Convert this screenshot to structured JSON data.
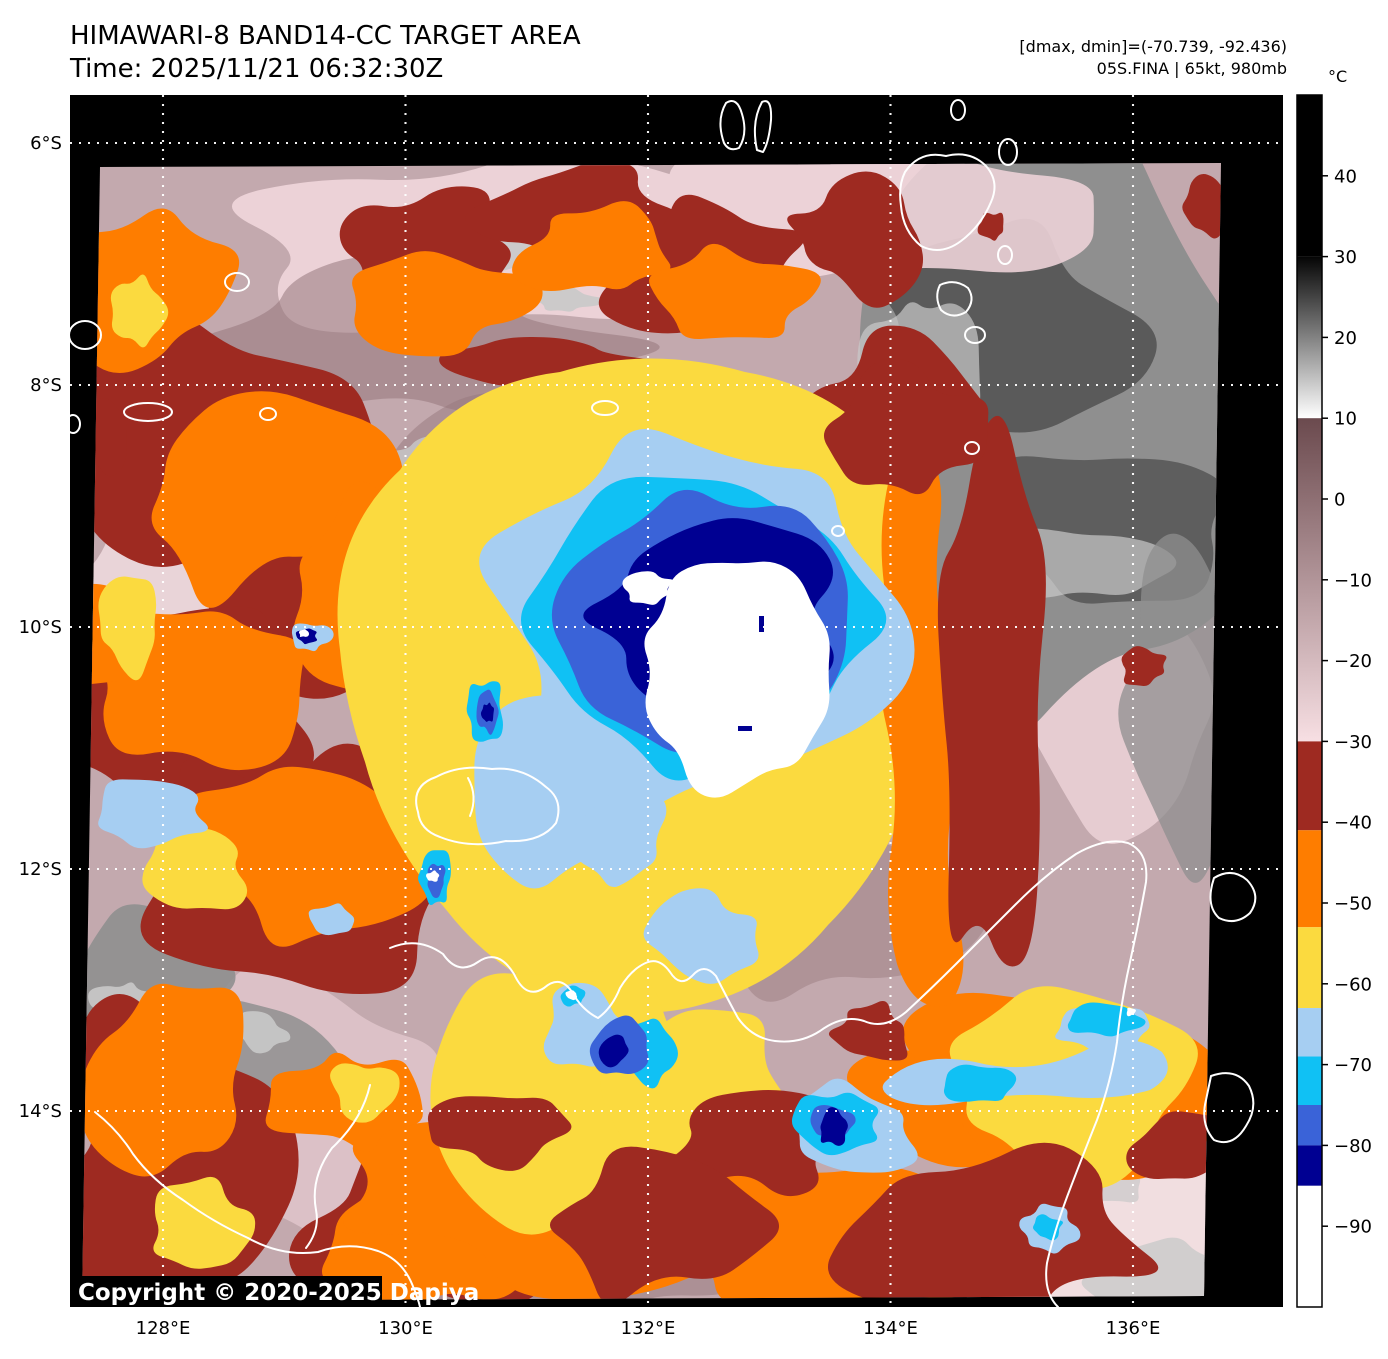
{
  "header": {
    "title": "HIMAWARI-8 BAND14-CC TARGET AREA",
    "time": "Time: 2025/11/21 06:32:30Z",
    "stats": "[dmax, dmin]=(-70.739, -92.436)",
    "storm": "05S.FINA | 65kt, 980mb"
  },
  "map": {
    "copyright": "Copyright © 2020-2025 Dapiya",
    "lat_ticks": [
      {
        "label": "6°S",
        "deg": 6
      },
      {
        "label": "8°S",
        "deg": 8
      },
      {
        "label": "10°S",
        "deg": 10
      },
      {
        "label": "12°S",
        "deg": 12
      },
      {
        "label": "14°S",
        "deg": 14
      }
    ],
    "lon_ticks": [
      {
        "label": "128°E",
        "deg": 128
      },
      {
        "label": "130°E",
        "deg": 130
      },
      {
        "label": "132°E",
        "deg": 132
      },
      {
        "label": "134°E",
        "deg": 134
      },
      {
        "label": "136°E",
        "deg": 136
      }
    ]
  },
  "colorbar": {
    "unit": "°C",
    "temp_max": 50,
    "temp_min": -100,
    "ticks": [
      40,
      30,
      20,
      10,
      0,
      -10,
      -20,
      -30,
      -40,
      -50,
      -60,
      -70,
      -80,
      -90
    ],
    "segments": [
      {
        "from": 50,
        "to": 30,
        "type": "solid",
        "color": "#000000"
      },
      {
        "from": 30,
        "to": 10,
        "type": "gradient",
        "colors": [
          "#050505",
          "#ffffff"
        ]
      },
      {
        "from": 10,
        "to": -30,
        "type": "gradient",
        "colors": [
          "#6b4a4e",
          "#f7dfe3"
        ]
      },
      {
        "from": -30,
        "to": -41,
        "type": "solid",
        "color": "#9e2a21"
      },
      {
        "from": -41,
        "to": -53,
        "type": "solid",
        "color": "#fe7d00"
      },
      {
        "from": -53,
        "to": -63,
        "type": "solid",
        "color": "#fbda3f"
      },
      {
        "from": -63,
        "to": -69,
        "type": "solid",
        "color": "#a6cef2"
      },
      {
        "from": -69,
        "to": -75,
        "type": "solid",
        "color": "#10c1f4"
      },
      {
        "from": -75,
        "to": -80,
        "type": "solid",
        "color": "#3a63d8"
      },
      {
        "from": -80,
        "to": -85,
        "type": "solid",
        "color": "#000092"
      },
      {
        "from": -85,
        "to": -100,
        "type": "solid",
        "color": "#ffffff"
      }
    ]
  },
  "palette": {
    "black": "#000000",
    "mauve": "#c3a9ae",
    "mauveDark": "#96777c",
    "pink": "#ecd2d7",
    "pinkLight": "#f6e3e6",
    "grayLight": "#c9c9c9",
    "grayMid": "#8f8f8f",
    "charcoal": "#565656",
    "darkred": "#9e2a21",
    "orange": "#fe7d00",
    "yellow": "#fbda3f",
    "lightblue": "#a6cef2",
    "cyan": "#10c1f4",
    "royal": "#3a63d8",
    "navy": "#000092",
    "white": "#ffffff",
    "coast": "#ffffff",
    "grid": "#ffffff"
  }
}
